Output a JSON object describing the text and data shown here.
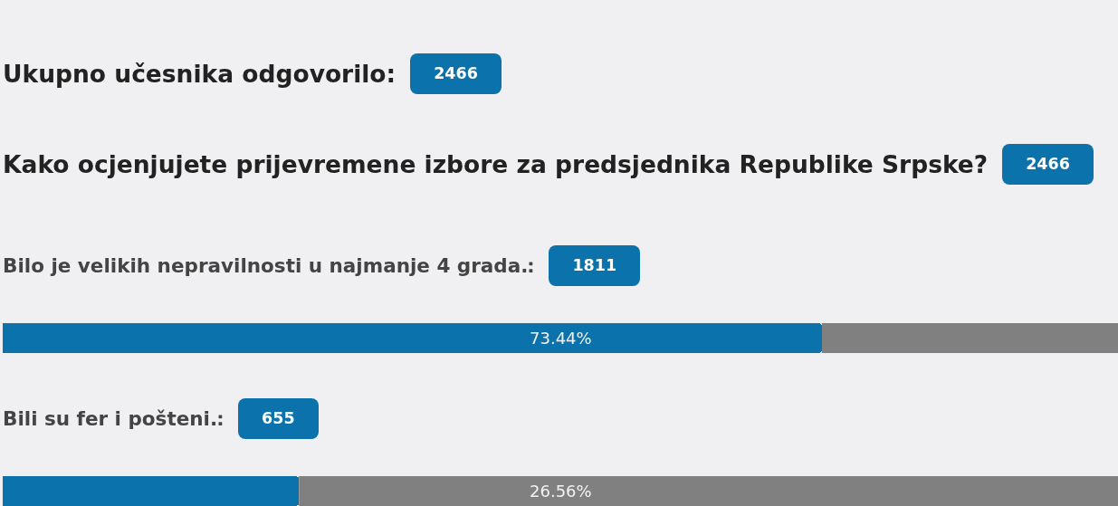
{
  "chart_data": {
    "type": "bar",
    "orientation": "horizontal",
    "title": "Ukupno učesnika odgovorilo:",
    "subtitle": "Kako ocjenjujete prijevremene izbore za predsjednika Republike Srpske?",
    "categories": [
      "Bilo je velikih nepravilnosti u najmanje 4 grada.",
      "Bili su fer i pošteni."
    ],
    "values": [
      73.44,
      26.56
    ],
    "value_labels": [
      "73.44%",
      "26.56%"
    ],
    "color": "#0b72ab",
    "xlim": [
      0,
      100
    ],
    "annotations": [
      "2466",
      "2466",
      "1811",
      "655"
    ]
  }
}
